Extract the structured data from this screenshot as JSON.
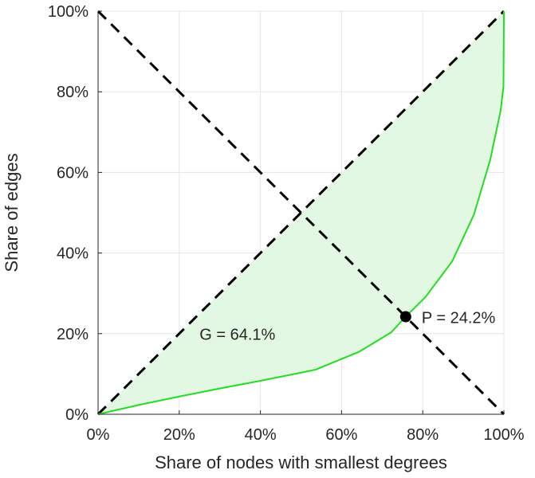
{
  "chart_data": {
    "type": "line",
    "title": "",
    "xlabel": "Share of nodes with smallest degrees",
    "ylabel": "Share of edges",
    "xlim": [
      0,
      100
    ],
    "ylim": [
      0,
      100
    ],
    "grid": true,
    "x_ticks": [
      "0%",
      "20%",
      "40%",
      "60%",
      "80%",
      "100%"
    ],
    "y_ticks": [
      "0%",
      "20%",
      "40%",
      "60%",
      "80%",
      "100%"
    ],
    "x_tick_values": [
      0,
      20,
      40,
      60,
      80,
      100
    ],
    "y_tick_values": [
      0,
      20,
      40,
      60,
      80,
      100
    ],
    "series": [
      {
        "name": "Lorenz curve",
        "color": "#22dd22",
        "fill": "#e3f8e3",
        "x": [
          0,
          10,
          20,
          30,
          40,
          50.4,
          53.7,
          64.3,
          72.2,
          75.7,
          80.7,
          87.3,
          92.6,
          96.6,
          99.2,
          99.9,
          100
        ],
        "y": [
          0,
          2.3,
          4.4,
          6.4,
          8.3,
          10.4,
          11.1,
          15.5,
          20.3,
          24.1,
          29.1,
          38,
          49.5,
          63,
          75.3,
          81.4,
          100
        ]
      },
      {
        "name": "Equality line",
        "color": "#000000",
        "style": "dashed",
        "x": [
          0,
          100
        ],
        "y": [
          0,
          100
        ]
      },
      {
        "name": "Anti-diagonal",
        "color": "#000000",
        "style": "dashed",
        "x": [
          0,
          100
        ],
        "y": [
          100,
          0
        ]
      }
    ],
    "point": {
      "label": "P = 24.2%",
      "x": 75.8,
      "y": 24.2
    },
    "annotations": [
      {
        "text": "G = 64.1%",
        "x": 35,
        "y": 20
      }
    ]
  }
}
